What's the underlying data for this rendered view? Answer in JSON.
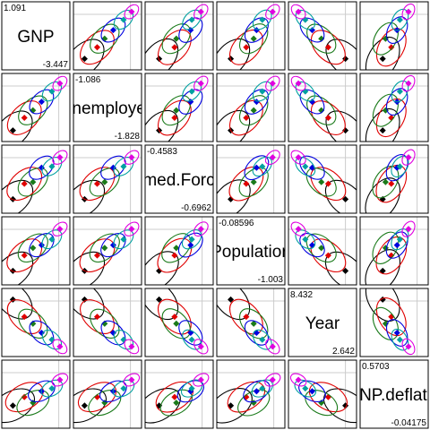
{
  "chart_data": {
    "type": "scatter-matrix",
    "variables": [
      {
        "label": "GNP",
        "max": "1.091",
        "min": "-3.447"
      },
      {
        "label": "Unemployed",
        "max": "-1.086",
        "min": "-1.828"
      },
      {
        "label": "Armed.Forces",
        "max": "-0.4583",
        "min": "-0.6962"
      },
      {
        "label": "Population",
        "max": "-0.08596",
        "min": "-1.003"
      },
      {
        "label": "Year",
        "max": "8.432",
        "min": "2.642"
      },
      {
        "label": "GNP.deflator",
        "max": "0.5703",
        "min": "-0.04175"
      }
    ],
    "groups": [
      {
        "id": "g1",
        "color": "#000000"
      },
      {
        "id": "g2",
        "color": "#e00000"
      },
      {
        "id": "g3",
        "color": "#1a7a1a"
      },
      {
        "id": "g4",
        "color": "#0000e0"
      },
      {
        "id": "g5",
        "color": "#00a0a0"
      },
      {
        "id": "g6",
        "color": "#e000e0"
      }
    ],
    "ellipse_type": "data ellipses with group centroids",
    "grid": true
  }
}
